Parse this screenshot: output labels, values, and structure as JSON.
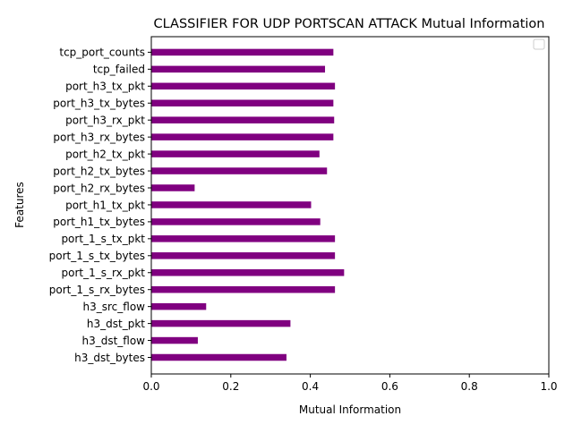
{
  "chart_data": {
    "type": "bar",
    "orientation": "horizontal",
    "title": "CLASSIFIER FOR UDP PORTSCAN ATTACK Mutual Information",
    "xlabel": "Mutual Information",
    "ylabel": "Features",
    "xlim": [
      0,
      1.0
    ],
    "xticks": [
      "0.0",
      "0.2",
      "0.4",
      "0.6",
      "0.8",
      "1.0"
    ],
    "xtick_values": [
      0,
      0.2,
      0.4,
      0.6,
      0.8,
      1.0
    ],
    "bar_color": "#800080",
    "legend": {
      "placement": "top-right",
      "entries": []
    },
    "grid": false,
    "categories": [
      "h3_dst_bytes",
      "h3_dst_flow",
      "h3_dst_pkt",
      "h3_src_flow",
      "port_1_s_rx_bytes",
      "port_1_s_rx_pkt",
      "port_1_s_tx_bytes",
      "port_1_s_tx_pkt",
      "port_h1_tx_bytes",
      "port_h1_tx_pkt",
      "port_h2_rx_bytes",
      "port_h2_tx_bytes",
      "port_h2_tx_pkt",
      "port_h3_rx_bytes",
      "port_h3_rx_pkt",
      "port_h3_tx_bytes",
      "port_h3_tx_pkt",
      "tcp_failed",
      "tcp_port_counts"
    ],
    "values": [
      0.34,
      0.117,
      0.35,
      0.138,
      0.462,
      0.485,
      0.462,
      0.462,
      0.425,
      0.402,
      0.109,
      0.442,
      0.423,
      0.458,
      0.46,
      0.458,
      0.462,
      0.437,
      0.458
    ]
  }
}
